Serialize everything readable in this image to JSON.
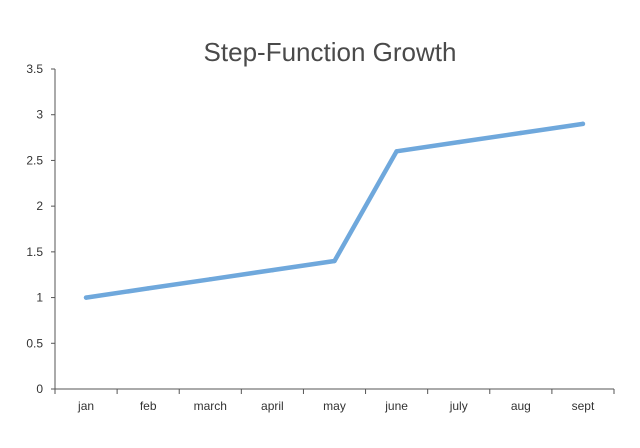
{
  "chart_data": {
    "type": "line",
    "title": "Step-Function Growth",
    "xlabel": "",
    "ylabel": "",
    "categories": [
      "jan",
      "feb",
      "march",
      "april",
      "may",
      "june",
      "july",
      "aug",
      "sept"
    ],
    "series": [
      {
        "values": [
          1.0,
          1.1,
          1.2,
          1.3,
          1.4,
          2.6,
          2.7,
          2.8,
          2.9
        ]
      }
    ],
    "ylim": [
      0,
      3.5
    ],
    "yticks": [
      "0",
      "0.5",
      "1",
      "1.5",
      "2",
      "2.5",
      "3",
      "3.5"
    ],
    "grid": false,
    "line_color": "#6fa8dc",
    "axis_color": "#555555"
  }
}
